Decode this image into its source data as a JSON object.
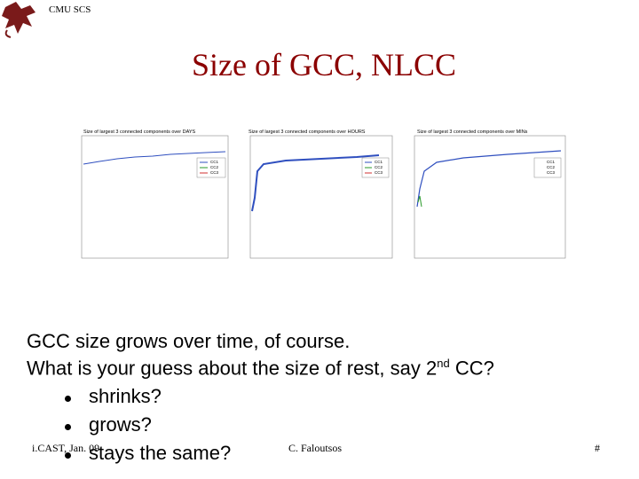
{
  "header": {
    "logo_text": "CMU SCS",
    "title": "Size of GCC, NLCC"
  },
  "figures": [
    {
      "title": "Size of largest 3 connected components over DAYS",
      "legend": [
        "CC1",
        "CC2",
        "CC3"
      ]
    },
    {
      "title": "Size of largest 3 connected components over HOURS",
      "legend": [
        "CC1",
        "CC2",
        "CC3"
      ]
    },
    {
      "title": "Size of largest 3 connected components over MINs",
      "legend": [
        "CC1",
        "CC2",
        "CC3"
      ]
    }
  ],
  "body": {
    "line1": "GCC size grows over time, of course.",
    "line2": {
      "before": "What is your guess about the size of rest, say 2",
      "sup": "nd",
      "after": " CC?"
    },
    "bullets": [
      "shrinks?",
      "grows?",
      "stays the same?"
    ]
  },
  "footer": {
    "left": "i.CAST, Jan. 09",
    "center": "C. Faloutsos",
    "right": "#"
  }
}
